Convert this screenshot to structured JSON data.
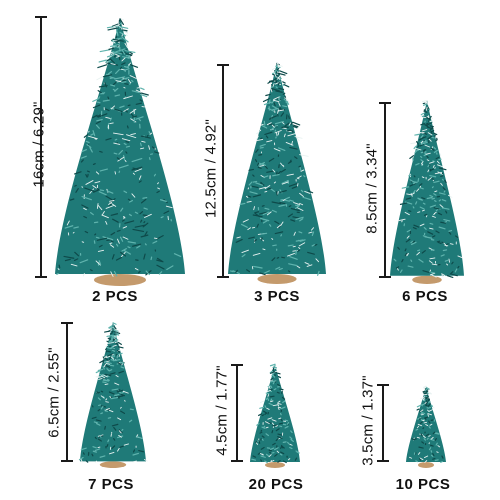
{
  "colors": {
    "needle_dark": "#0e4a4a",
    "needle_mid": "#1f7a78",
    "needle_light": "#5fb3ad",
    "frost": "#e8f2f1",
    "base": "#c49a6c",
    "line": "#1a1a1a"
  },
  "items": [
    {
      "size": "16cm / 6.29\"",
      "qty": "2 PCS"
    },
    {
      "size": "12.5cm / 4.92\"",
      "qty": "3 PCS"
    },
    {
      "size": "8.5cm / 3.34\"",
      "qty": "6 PCS"
    },
    {
      "size": "6.5cm / 2.55\"",
      "qty": "7 PCS"
    },
    {
      "size": "4.5cm / 1.77\"",
      "qty": "20 PCS"
    },
    {
      "size": "3.5cm / 1.37\"",
      "qty": "10 PCS"
    }
  ]
}
